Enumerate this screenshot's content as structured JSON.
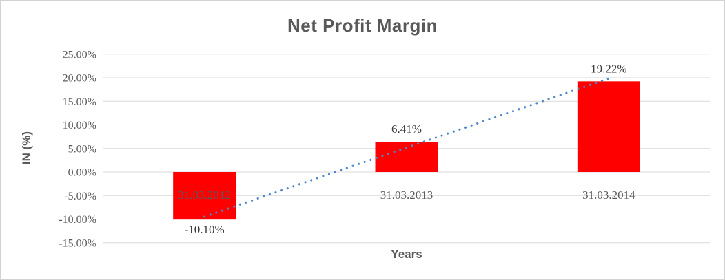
{
  "chart_data": {
    "type": "bar",
    "title": "Net Profit Margin",
    "xlabel": "Years",
    "ylabel": "IN (%)",
    "categories": [
      "31.03.2012",
      "31.03.2013",
      "31.03.2014"
    ],
    "values": [
      -10.1,
      6.41,
      19.22
    ],
    "data_labels": [
      "-10.10%",
      "6.41%",
      "19.22%"
    ],
    "y_ticks": [
      "25.00%",
      "20.00%",
      "15.00%",
      "10.00%",
      "5.00%",
      "0.00%",
      "-5.00%",
      "-10.00%",
      "-15.00%"
    ],
    "ylim": [
      -15,
      25
    ],
    "grid": true,
    "legend": "none",
    "bar_color": "#ff0000",
    "gridline_color": "#d9d9d9",
    "trendline": {
      "type": "linear",
      "style": "dotted",
      "color": "#4e86c7"
    }
  }
}
